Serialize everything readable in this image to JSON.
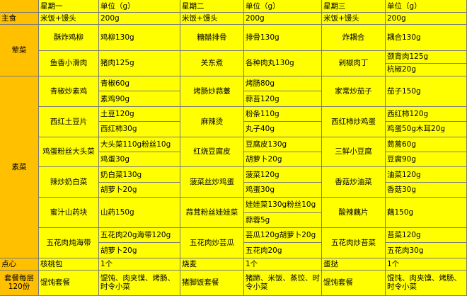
{
  "header": {
    "days": [
      "星期一",
      "星期二",
      "星期三"
    ],
    "unit": "单位（g）"
  },
  "staple": {
    "label": "主食",
    "items": [
      {
        "name": "米饭+馒头",
        "amount": "200g"
      },
      {
        "name": "米饭+馒头",
        "amount": "200g"
      },
      {
        "name": "米饭+馒头",
        "amount": "200g"
      }
    ]
  },
  "sections": [
    {
      "label": "荤菜",
      "rows": [
        [
          {
            "dish": "酥炸鸡柳",
            "ingredients": [
              "鸡柳130g"
            ]
          },
          {
            "dish": "糖醋排骨",
            "ingredients": [
              "排骨130g"
            ]
          },
          {
            "dish": "炸耦合",
            "ingredients": [
              "耦合130g"
            ]
          }
        ],
        [
          {
            "dish": "鱼香小滑肉",
            "ingredients": [
              "猪肉125g"
            ]
          },
          {
            "dish": "关东煮",
            "ingredients": [
              "各种肉丸130g"
            ]
          },
          {
            "dish": "剁椒肉丁",
            "ingredients": [
              "颈背肉125g",
              "杭椒20g"
            ]
          }
        ]
      ]
    },
    {
      "label": "素菜",
      "rows": [
        [
          {
            "dish": "青椒炒素鸡",
            "ingredients": [
              "青椒60g",
              "素鸡90g"
            ]
          },
          {
            "dish": "烤肠炒蒜薹",
            "ingredients": [
              "烤肠80g",
              "蒜苔120g"
            ]
          },
          {
            "dish": "家常炒茄子",
            "ingredients": [
              "茄子150g"
            ]
          }
        ],
        [
          {
            "dish": "西红土豆片",
            "ingredients": [
              "土豆120g",
              "西红柿30g"
            ]
          },
          {
            "dish": "麻辣烫",
            "ingredients": [
              "粉条110g",
              "丸子40g"
            ]
          },
          {
            "dish": "西红柿炒鸡蛋",
            "ingredients": [
              "西红柿120g",
              "鸡蛋50g木耳20g"
            ]
          }
        ],
        [
          {
            "dish": "鸡蛋粉丝大头菜",
            "ingredients": [
              "大头菜110g粉丝10g",
              "鸡蛋30g"
            ]
          },
          {
            "dish": "红烧豆腐皮",
            "ingredients": [
              "豆腐皮130g",
              "胡萝卜20g"
            ]
          },
          {
            "dish": "三鲜小豆腐",
            "ingredients": [
              "茼蒿60g",
              "豆腐90g"
            ]
          }
        ],
        [
          {
            "dish": "辣炒奶白菜",
            "ingredients": [
              "奶白菜130g",
              "胡萝卜20g"
            ]
          },
          {
            "dish": "菠菜丝炒鸡蛋",
            "ingredients": [
              "菠菜120g",
              "鸡蛋30g"
            ]
          },
          {
            "dish": "香菇炒油菜",
            "ingredients": [
              "油菜120g",
              "香菇30g"
            ]
          }
        ],
        [
          {
            "dish": "蜜汁山药块",
            "ingredients": [
              "山药150g"
            ]
          },
          {
            "dish": "蒜茸粉丝娃娃菜",
            "ingredients": [
              "娃娃菜130g粉丝10g",
              "蒜蓉5g"
            ]
          },
          {
            "dish": "酸辣藕片",
            "ingredients": [
              "藕150g"
            ]
          }
        ],
        [
          {
            "dish": "五花肉炖海带",
            "ingredients": [
              "五花肉20g海带120g",
              "胡萝卜20g"
            ]
          },
          {
            "dish": "五花肉炒芸瓜",
            "ingredients": [
              "芸瓜120g胡萝卜20g",
              "五花肉20g"
            ]
          },
          {
            "dish": "五花肉炒苔菜",
            "ingredients": [
              "苔菜120g",
              "五花肉30g"
            ]
          }
        ]
      ]
    }
  ],
  "snack": {
    "label": "点心",
    "items": [
      {
        "name": "核桃包",
        "amount": "1个"
      },
      {
        "name": "烧麦",
        "amount": "1个"
      },
      {
        "name": "蛋挞",
        "amount": "1个"
      }
    ]
  },
  "set_meal": {
    "label": "套餐每层120份",
    "items": [
      {
        "name": "馄饨套餐",
        "contents": "馄饨、肉夹馍、烤肠、时令小菜"
      },
      {
        "name": "猪脚饭套餐",
        "contents": "猪蹄、米饭、蒸饺、时令小菜"
      },
      {
        "name": "馄饨套餐",
        "contents": "馄饨、肉夹馍、烤肠、时令小菜"
      }
    ]
  }
}
